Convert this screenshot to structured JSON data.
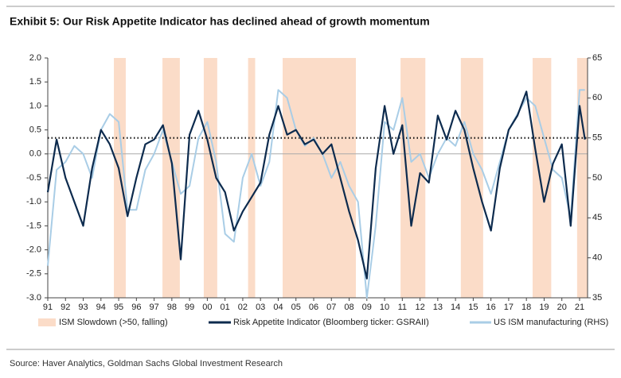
{
  "chart_data": {
    "type": "line",
    "title": "Exhibit 5: Our Risk Appetite Indicator has declined ahead of growth momentum",
    "source": "Source: Haver Analytics, Goldman Sachs Global Investment Research",
    "x": [
      1991.0,
      1991.5,
      1992.0,
      1992.5,
      1993.0,
      1993.5,
      1994.0,
      1994.5,
      1995.0,
      1995.5,
      1996.0,
      1996.5,
      1997.0,
      1997.5,
      1998.0,
      1998.5,
      1999.0,
      1999.5,
      2000.0,
      2000.5,
      2001.0,
      2001.5,
      2002.0,
      2002.5,
      2003.0,
      2003.5,
      2004.0,
      2004.5,
      2005.0,
      2005.5,
      2006.0,
      2006.5,
      2007.0,
      2007.5,
      2008.0,
      2008.5,
      2009.0,
      2009.5,
      2010.0,
      2010.5,
      2011.0,
      2011.5,
      2012.0,
      2012.5,
      2013.0,
      2013.5,
      2014.0,
      2014.5,
      2015.0,
      2015.5,
      2016.0,
      2016.5,
      2017.0,
      2017.5,
      2018.0,
      2018.5,
      2019.0,
      2019.5,
      2020.0,
      2020.5,
      2021.0,
      2021.3
    ],
    "shaded": {
      "name": "ISM Slowdown (>50, falling)",
      "color": "#fbdcc8",
      "bands": [
        [
          1994.73,
          1995.4
        ],
        [
          1997.47,
          1998.45
        ],
        [
          1999.8,
          2000.56
        ],
        [
          2002.3,
          2002.7
        ],
        [
          2004.25,
          2008.38
        ],
        [
          2010.9,
          2012.3
        ],
        [
          2014.3,
          2015.56
        ],
        [
          2018.35,
          2019.4
        ],
        [
          2020.86,
          2021.45
        ]
      ]
    },
    "series": [
      {
        "name": "US ISM manufacturing (RHS)",
        "color": "#a9cde6",
        "axis": "y2",
        "values": [
          39,
          51,
          52,
          54,
          53,
          50,
          56,
          58,
          57,
          46,
          46,
          51,
          53,
          56,
          52,
          48,
          49,
          55,
          57,
          52,
          43,
          42,
          50,
          53,
          49,
          52,
          61,
          60,
          56,
          54,
          55,
          53,
          50,
          52,
          49,
          47,
          35,
          44,
          57,
          56,
          60,
          52,
          53,
          50,
          53,
          55,
          54,
          57,
          53,
          51,
          48,
          52,
          56,
          58,
          60,
          59,
          55,
          51,
          50,
          45,
          61,
          61
        ]
      },
      {
        "name": "Risk Appetite Indicator (Bloomberg ticker: GSRAII)",
        "color": "#0d2b4e",
        "values": [
          -0.8,
          0.3,
          -0.5,
          -1.0,
          -1.5,
          -0.3,
          0.5,
          0.2,
          -0.3,
          -1.3,
          -0.5,
          0.2,
          0.3,
          0.6,
          -0.2,
          -2.2,
          0.4,
          0.9,
          0.3,
          -0.5,
          -0.8,
          -1.6,
          -1.2,
          -0.9,
          -0.6,
          0.4,
          1.0,
          0.4,
          0.5,
          0.2,
          0.3,
          0.0,
          0.2,
          -0.5,
          -1.2,
          -1.8,
          -2.6,
          -0.3,
          1.0,
          0.0,
          0.6,
          -1.5,
          -0.4,
          -0.6,
          0.8,
          0.3,
          0.9,
          0.5,
          -0.3,
          -1.0,
          -1.6,
          -0.3,
          0.5,
          0.8,
          1.3,
          0.1,
          -1.0,
          -0.2,
          0.2,
          -1.5,
          1.0,
          0.3
        ]
      }
    ],
    "reference_line": {
      "value": 55,
      "axis": "y2"
    },
    "xlim": [
      1991,
      2021.45
    ],
    "xticks": [
      {
        "value": 1991,
        "label": "91"
      },
      {
        "value": 1992,
        "label": "92"
      },
      {
        "value": 1993,
        "label": "93"
      },
      {
        "value": 1994,
        "label": "94"
      },
      {
        "value": 1995,
        "label": "95"
      },
      {
        "value": 1996,
        "label": "96"
      },
      {
        "value": 1997,
        "label": "97"
      },
      {
        "value": 1998,
        "label": "98"
      },
      {
        "value": 1999,
        "label": "99"
      },
      {
        "value": 2000,
        "label": "00"
      },
      {
        "value": 2001,
        "label": "01"
      },
      {
        "value": 2002,
        "label": "02"
      },
      {
        "value": 2003,
        "label": "03"
      },
      {
        "value": 2004,
        "label": "04"
      },
      {
        "value": 2005,
        "label": "05"
      },
      {
        "value": 2006,
        "label": "06"
      },
      {
        "value": 2007,
        "label": "07"
      },
      {
        "value": 2008,
        "label": "08"
      },
      {
        "value": 2009,
        "label": "09"
      },
      {
        "value": 2010,
        "label": "10"
      },
      {
        "value": 2011,
        "label": "11"
      },
      {
        "value": 2012,
        "label": "12"
      },
      {
        "value": 2013,
        "label": "13"
      },
      {
        "value": 2014,
        "label": "14"
      },
      {
        "value": 2015,
        "label": "15"
      },
      {
        "value": 2016,
        "label": "16"
      },
      {
        "value": 2017,
        "label": "17"
      },
      {
        "value": 2018,
        "label": "18"
      },
      {
        "value": 2019,
        "label": "19"
      },
      {
        "value": 2020,
        "label": "20"
      },
      {
        "value": 2021,
        "label": "21"
      }
    ],
    "ylim": [
      -3,
      2
    ],
    "yticks": [
      {
        "value": -3,
        "label": "-3.0"
      },
      {
        "value": -2.5,
        "label": "-2.5"
      },
      {
        "value": -2,
        "label": "-2.0"
      },
      {
        "value": -1.5,
        "label": "-1.5"
      },
      {
        "value": -1,
        "label": "-1.0"
      },
      {
        "value": -0.5,
        "label": "-0.5"
      },
      {
        "value": 0,
        "label": "0.0"
      },
      {
        "value": 0.5,
        "label": "0.5"
      },
      {
        "value": 1,
        "label": "1.0"
      },
      {
        "value": 1.5,
        "label": "1.5"
      },
      {
        "value": 2,
        "label": "2.0"
      }
    ],
    "y2lim": [
      35,
      65
    ],
    "y2ticks": [
      35,
      40,
      45,
      50,
      55,
      60,
      65
    ]
  }
}
